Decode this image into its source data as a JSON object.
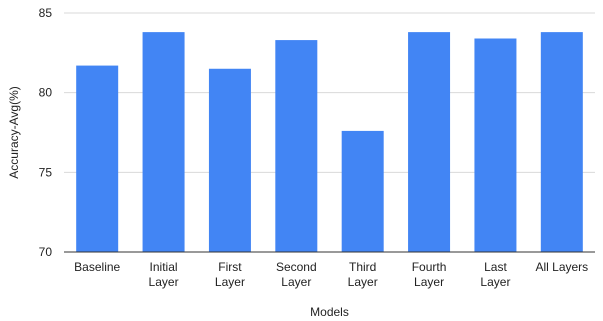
{
  "chart_data": {
    "type": "bar",
    "title": "",
    "xlabel": "Models",
    "ylabel": "Accuracy-Avg(%)",
    "ylim": [
      70,
      85
    ],
    "yticks": [
      70,
      75,
      80,
      85
    ],
    "grid": true,
    "legend": "none",
    "bar_color": "#4285f4",
    "categories": [
      [
        "Baseline"
      ],
      [
        "Initial",
        "Layer"
      ],
      [
        "First",
        "Layer"
      ],
      [
        "Second",
        "Layer"
      ],
      [
        "Third",
        "Layer"
      ],
      [
        "Fourth",
        "Layer"
      ],
      [
        "Last",
        "Layer"
      ],
      [
        "All Layers"
      ]
    ],
    "values": [
      81.7,
      83.8,
      81.5,
      83.3,
      77.6,
      83.8,
      83.4,
      83.8
    ]
  }
}
